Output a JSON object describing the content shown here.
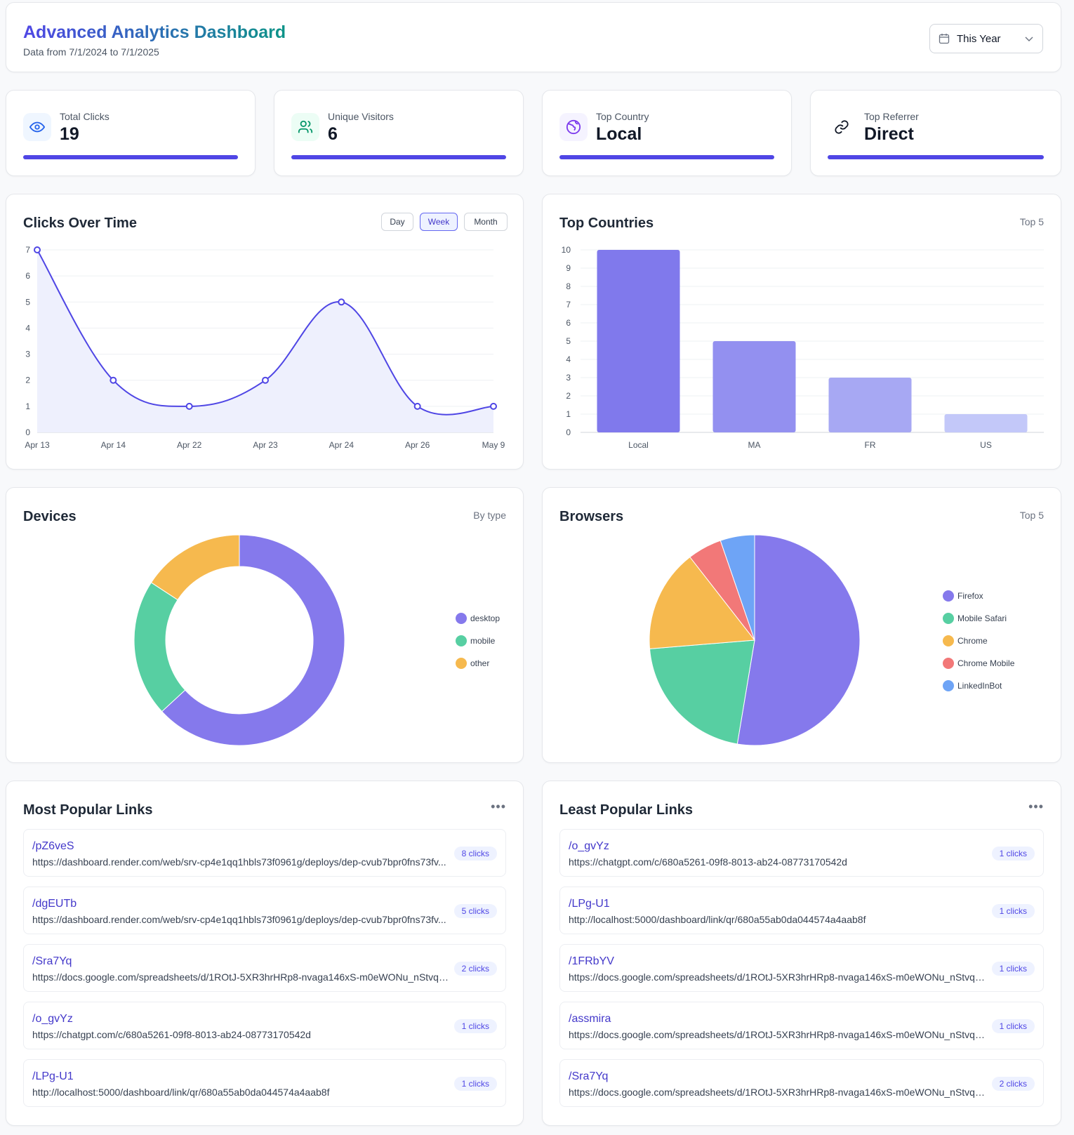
{
  "header": {
    "title": "Advanced Analytics Dashboard",
    "subtitle": "Data from 7/1/2024 to 7/1/2025",
    "range_selected": "This Year"
  },
  "stats": [
    {
      "label": "Total Clicks",
      "value": "19",
      "icon": "eye-icon",
      "icon_color": "#2563eb",
      "icon_bg": "#eff6ff"
    },
    {
      "label": "Unique Visitors",
      "value": "6",
      "icon": "users-icon",
      "icon_color": "#059669",
      "icon_bg": "#ecfdf5"
    },
    {
      "label": "Top Country",
      "value": "Local",
      "icon": "globe-icon",
      "icon_color": "#7c3aed",
      "icon_bg": "#f5f3ff"
    },
    {
      "label": "Top Referrer",
      "value": "Direct",
      "icon": "link-icon",
      "icon_color": "#111827",
      "icon_bg": "#ffffff"
    }
  ],
  "clicks_over_time": {
    "title": "Clicks Over Time",
    "tabs": [
      "Day",
      "Week",
      "Month"
    ],
    "active_tab": "Week"
  },
  "top_countries": {
    "title": "Top Countries",
    "hint": "Top 5"
  },
  "devices": {
    "title": "Devices",
    "hint": "By type"
  },
  "browsers": {
    "title": "Browsers",
    "hint": "Top 5"
  },
  "chart_data": [
    {
      "type": "line",
      "title": "Clicks Over Time",
      "categories": [
        "Apr 13",
        "Apr 14",
        "Apr 22",
        "Apr 23",
        "Apr 24",
        "Apr 26",
        "May 9"
      ],
      "values": [
        7,
        2,
        1,
        2,
        5,
        1,
        1
      ],
      "ylim": [
        0,
        7
      ],
      "yticks": [
        0,
        1,
        2,
        3,
        4,
        5,
        6,
        7
      ],
      "grid": true,
      "color": "#4f46e5",
      "fill": "#eef0fd"
    },
    {
      "type": "bar",
      "title": "Top Countries",
      "categories": [
        "Local",
        "MA",
        "FR",
        "US"
      ],
      "values": [
        10,
        5,
        3,
        1
      ],
      "ylim": [
        0,
        10
      ],
      "yticks": [
        0,
        1,
        2,
        3,
        4,
        5,
        6,
        7,
        8,
        9,
        10
      ],
      "grid": true,
      "colors": [
        "#8079ec",
        "#9390f0",
        "#a7a8f3",
        "#c3c8f9"
      ]
    },
    {
      "type": "pie",
      "subtype": "donut",
      "title": "Devices",
      "labels": [
        "desktop",
        "mobile",
        "other"
      ],
      "values": [
        12,
        4,
        3
      ],
      "colors": [
        "#8579ec",
        "#57cfa2",
        "#f6b94e"
      ],
      "legend": "right"
    },
    {
      "type": "pie",
      "title": "Browsers",
      "labels": [
        "Firefox",
        "Mobile Safari",
        "Chrome",
        "Chrome Mobile",
        "LinkedInBot"
      ],
      "values": [
        10,
        4,
        3,
        1,
        1
      ],
      "colors": [
        "#8579ec",
        "#57cfa2",
        "#f6b94e",
        "#f27878",
        "#6ea4f6"
      ],
      "legend": "right"
    }
  ],
  "most_popular": {
    "title": "Most Popular Links",
    "items": [
      {
        "slug": "/pZ6veS",
        "url": "https://dashboard.render.com/web/srv-cp4e1qq1hbls73f0961g/deploys/dep-cvub7bpr0fns73fv...",
        "clicks": "8 clicks"
      },
      {
        "slug": "/dgEUTb",
        "url": "https://dashboard.render.com/web/srv-cp4e1qq1hbls73f0961g/deploys/dep-cvub7bpr0fns73fv...",
        "clicks": "5 clicks"
      },
      {
        "slug": "/Sra7Yq",
        "url": "https://docs.google.com/spreadsheets/d/1ROtJ-5XR3hrHRp8-nvaga146xS-m0eWONu_nStvqNN...",
        "clicks": "2 clicks"
      },
      {
        "slug": "/o_gvYz",
        "url": "https://chatgpt.com/c/680a5261-09f8-8013-ab24-08773170542d",
        "clicks": "1 clicks"
      },
      {
        "slug": "/LPg-U1",
        "url": "http://localhost:5000/dashboard/link/qr/680a55ab0da044574a4aab8f",
        "clicks": "1 clicks"
      }
    ]
  },
  "least_popular": {
    "title": "Least Popular Links",
    "items": [
      {
        "slug": "/o_gvYz",
        "url": "https://chatgpt.com/c/680a5261-09f8-8013-ab24-08773170542d",
        "clicks": "1 clicks"
      },
      {
        "slug": "/LPg-U1",
        "url": "http://localhost:5000/dashboard/link/qr/680a55ab0da044574a4aab8f",
        "clicks": "1 clicks"
      },
      {
        "slug": "/1FRbYV",
        "url": "https://docs.google.com/spreadsheets/d/1ROtJ-5XR3hrHRp8-nvaga146xS-m0eWONu_nStvqNN...",
        "clicks": "1 clicks"
      },
      {
        "slug": "/assmira",
        "url": "https://docs.google.com/spreadsheets/d/1ROtJ-5XR3hrHRp8-nvaga146xS-m0eWONu_nStvqNN...",
        "clicks": "1 clicks"
      },
      {
        "slug": "/Sra7Yq",
        "url": "https://docs.google.com/spreadsheets/d/1ROtJ-5XR3hrHRp8-nvaga146xS-m0eWONu_nStvqNN...",
        "clicks": "2 clicks"
      }
    ]
  }
}
